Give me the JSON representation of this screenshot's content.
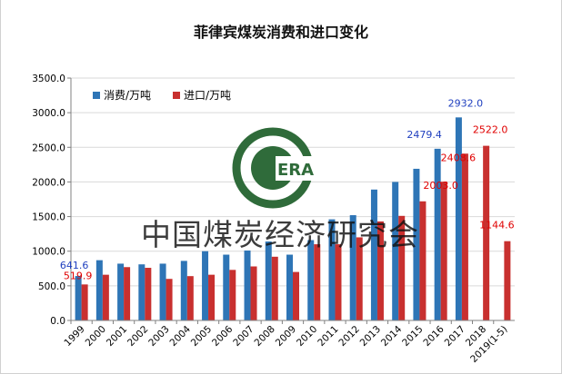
{
  "chart_data": {
    "type": "bar",
    "title": "菲律宾煤炭消费和进口变化",
    "categories": [
      "1999",
      "2000",
      "2001",
      "2002",
      "2003",
      "2004",
      "2005",
      "2006",
      "2007",
      "2008",
      "2009",
      "2010",
      "2011",
      "2012",
      "2013",
      "2014",
      "2015",
      "2016",
      "2017",
      "2018",
      "2019(1-5)"
    ],
    "series": [
      {
        "name": "消费/万吨",
        "color": "#2e75b6",
        "values": [
          641.6,
          870,
          820,
          810,
          820,
          860,
          1000,
          950,
          1010,
          1140,
          950,
          1160,
          1460,
          1520,
          1890,
          2000,
          2190,
          2479.4,
          2932.0,
          null,
          null
        ]
      },
      {
        "name": "进口/万吨",
        "color": "#c8302f",
        "values": [
          519.9,
          660,
          770,
          760,
          600,
          640,
          660,
          730,
          780,
          920,
          700,
          1100,
          1100,
          1200,
          1430,
          1510,
          1720,
          2003.0,
          2408.6,
          2522.0,
          1144.6
        ]
      }
    ],
    "data_labels": [
      {
        "series": 0,
        "index": 0,
        "text": "641.6",
        "color": "#1f3fbf"
      },
      {
        "series": 1,
        "index": 0,
        "text": "519.9",
        "color": "#e00000"
      },
      {
        "series": 0,
        "index": 17,
        "text": "2479.4",
        "color": "#1f3fbf"
      },
      {
        "series": 1,
        "index": 17,
        "text": "2003.0",
        "color": "#e00000"
      },
      {
        "series": 0,
        "index": 18,
        "text": "2932.0",
        "color": "#1f3fbf"
      },
      {
        "series": 1,
        "index": 18,
        "text": "2408.6",
        "color": "#e00000"
      },
      {
        "series": 1,
        "index": 19,
        "text": "2522.0",
        "color": "#e00000"
      },
      {
        "series": 1,
        "index": 20,
        "text": "1144.6",
        "color": "#e00000"
      }
    ],
    "ylim": [
      0,
      3500
    ],
    "yticks": [
      "0.0",
      "500.0",
      "1000.0",
      "1500.0",
      "2000.0",
      "2500.0",
      "3000.0",
      "3500.0"
    ],
    "grid": true,
    "legend_position": "top-left"
  },
  "watermark": {
    "text": "中国煤炭经济研究会",
    "logo_text": "ERA",
    "logo_color": "#2f6b3a"
  }
}
